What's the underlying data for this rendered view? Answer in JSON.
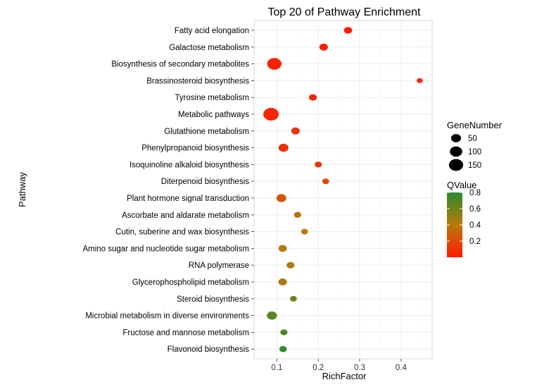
{
  "chart_data": {
    "type": "scatter",
    "title": "Top 20 of Pathway Enrichment",
    "xlabel": "RichFactor",
    "ylabel": "Pathway",
    "xlim": [
      0.045,
      0.475
    ],
    "xticks": [
      0.1,
      0.2,
      0.3,
      0.4
    ],
    "xtick_labels": [
      "0.1",
      "0.2",
      "0.3",
      "0.4"
    ],
    "grid": true,
    "legend_position": "right",
    "pathways": [
      "Fatty acid elongation",
      "Galactose metabolism",
      "Biosynthesis of secondary metabolites",
      "Brassinosteroid biosynthesis",
      "Tyrosine metabolism",
      "Metabolic pathways",
      "Glutathione metabolism",
      "Phenylpropanoid biosynthesis",
      "Isoquinoline alkaloid biosynthesis",
      "Diterpenoid biosynthesis",
      "Plant hormone signal transduction",
      "Ascorbate and aldarate metabolism",
      "Cutin, suberine and wax biosynthesis",
      "Amino sugar and nucleotide sugar metabolism",
      "RNA polymerase",
      "Glycerophospholipid metabolism",
      "Steroid biosynthesis",
      "Microbial metabolism in diverse environments",
      "Fructose and mannose metabolism",
      "Flavonoid biosynthesis"
    ],
    "rich_factor": [
      0.272,
      0.213,
      0.094,
      0.445,
      0.187,
      0.086,
      0.145,
      0.116,
      0.2,
      0.218,
      0.111,
      0.15,
      0.167,
      0.114,
      0.133,
      0.114,
      0.14,
      0.088,
      0.117,
      0.115
    ],
    "gene_number": [
      25,
      30,
      150,
      6,
      22,
      185,
      30,
      50,
      15,
      12,
      48,
      15,
      12,
      28,
      22,
      30,
      12,
      52,
      15,
      18
    ],
    "qvalue": [
      0.02,
      0.03,
      0.03,
      0.05,
      0.05,
      0.05,
      0.1,
      0.1,
      0.12,
      0.18,
      0.25,
      0.35,
      0.4,
      0.4,
      0.42,
      0.45,
      0.6,
      0.68,
      0.72,
      0.78
    ],
    "size_legend": {
      "title": "GeneNumber",
      "values": [
        50,
        100,
        150
      ],
      "labels": [
        "50",
        "100",
        "150"
      ]
    },
    "color_legend": {
      "title": "QValue",
      "range": [
        0,
        0.8
      ],
      "ticks": [
        0.2,
        0.4,
        0.6,
        0.8
      ],
      "tick_labels": [
        "0.2",
        "0.4",
        "0.6",
        "0.8"
      ],
      "low_color": "#ff1a00",
      "mid_color": "#b87a08",
      "high_color": "#2e8b2e"
    },
    "panel_background": "#ffffff",
    "grid_color": "#ebebeb"
  }
}
